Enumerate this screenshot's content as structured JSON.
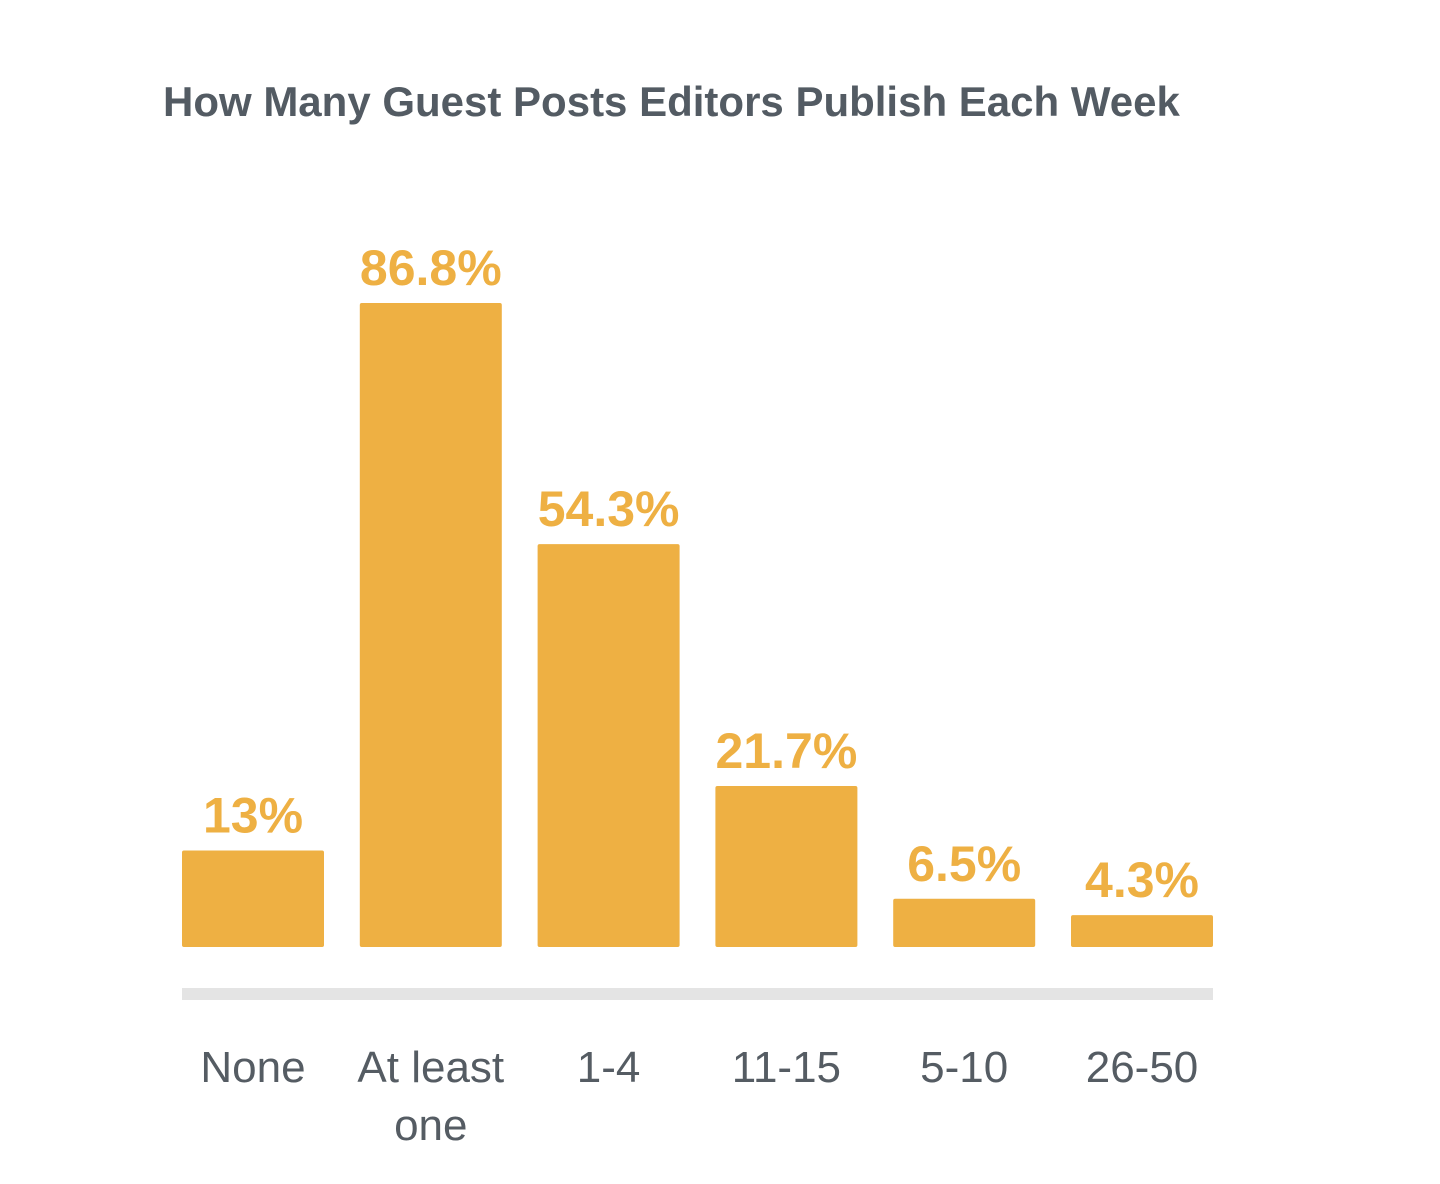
{
  "chart_data": {
    "type": "bar",
    "title": "How Many Guest Posts Editors Publish Each Week",
    "xlabel": "",
    "ylabel": "",
    "categories": [
      [
        "None"
      ],
      [
        "At least",
        "one"
      ],
      [
        "1-4"
      ],
      [
        "11-15"
      ],
      [
        "5-10"
      ],
      [
        "26-50"
      ]
    ],
    "values": [
      13,
      86.8,
      54.3,
      21.7,
      6.5,
      4.3
    ],
    "value_labels": [
      "13%",
      "86.8%",
      "54.3%",
      "21.7%",
      "6.5%",
      "4.3%"
    ],
    "ylim": [
      0,
      86.8
    ],
    "grid": false,
    "legend": "none",
    "colors": {
      "bar": "#eeb043",
      "value_label": "#eeb043",
      "axis_line": "#e4e4e4",
      "tick_label": "#555c63",
      "title": "#535b63"
    }
  }
}
